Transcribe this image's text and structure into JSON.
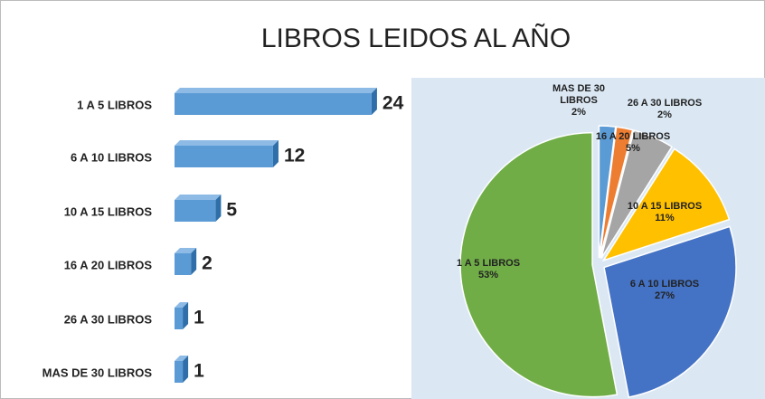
{
  "chart_data": [
    {
      "type": "bar",
      "title": "LIBROS LEIDOS AL AÑO",
      "categories": [
        "1 A 5 LIBROS",
        "6 A 10 LIBROS",
        "10 A 15 LIBROS",
        "16 A 20 LIBROS",
        "26 A 30 LIBROS",
        "MAS DE 30 LIBROS"
      ],
      "values": [
        24,
        12,
        5,
        2,
        1,
        1
      ],
      "color": "#5b9bd5"
    },
    {
      "type": "pie",
      "categories": [
        "MAS DE 30 LIBROS",
        "26 A 30 LIBROS",
        "16 A 20 LIBROS",
        "10 A 15 LIBROS",
        "6 A 10 LIBROS",
        "1 A 5 LIBROS"
      ],
      "values": [
        2,
        2,
        5,
        11,
        27,
        53
      ],
      "value_labels": [
        "2%",
        "2%",
        "5%",
        "11%",
        "27%",
        "53%"
      ],
      "colors": [
        "#5b9bd5",
        "#ed7d31",
        "#a5a5a5",
        "#ffc000",
        "#4472c4",
        "#70ad47"
      ]
    }
  ]
}
